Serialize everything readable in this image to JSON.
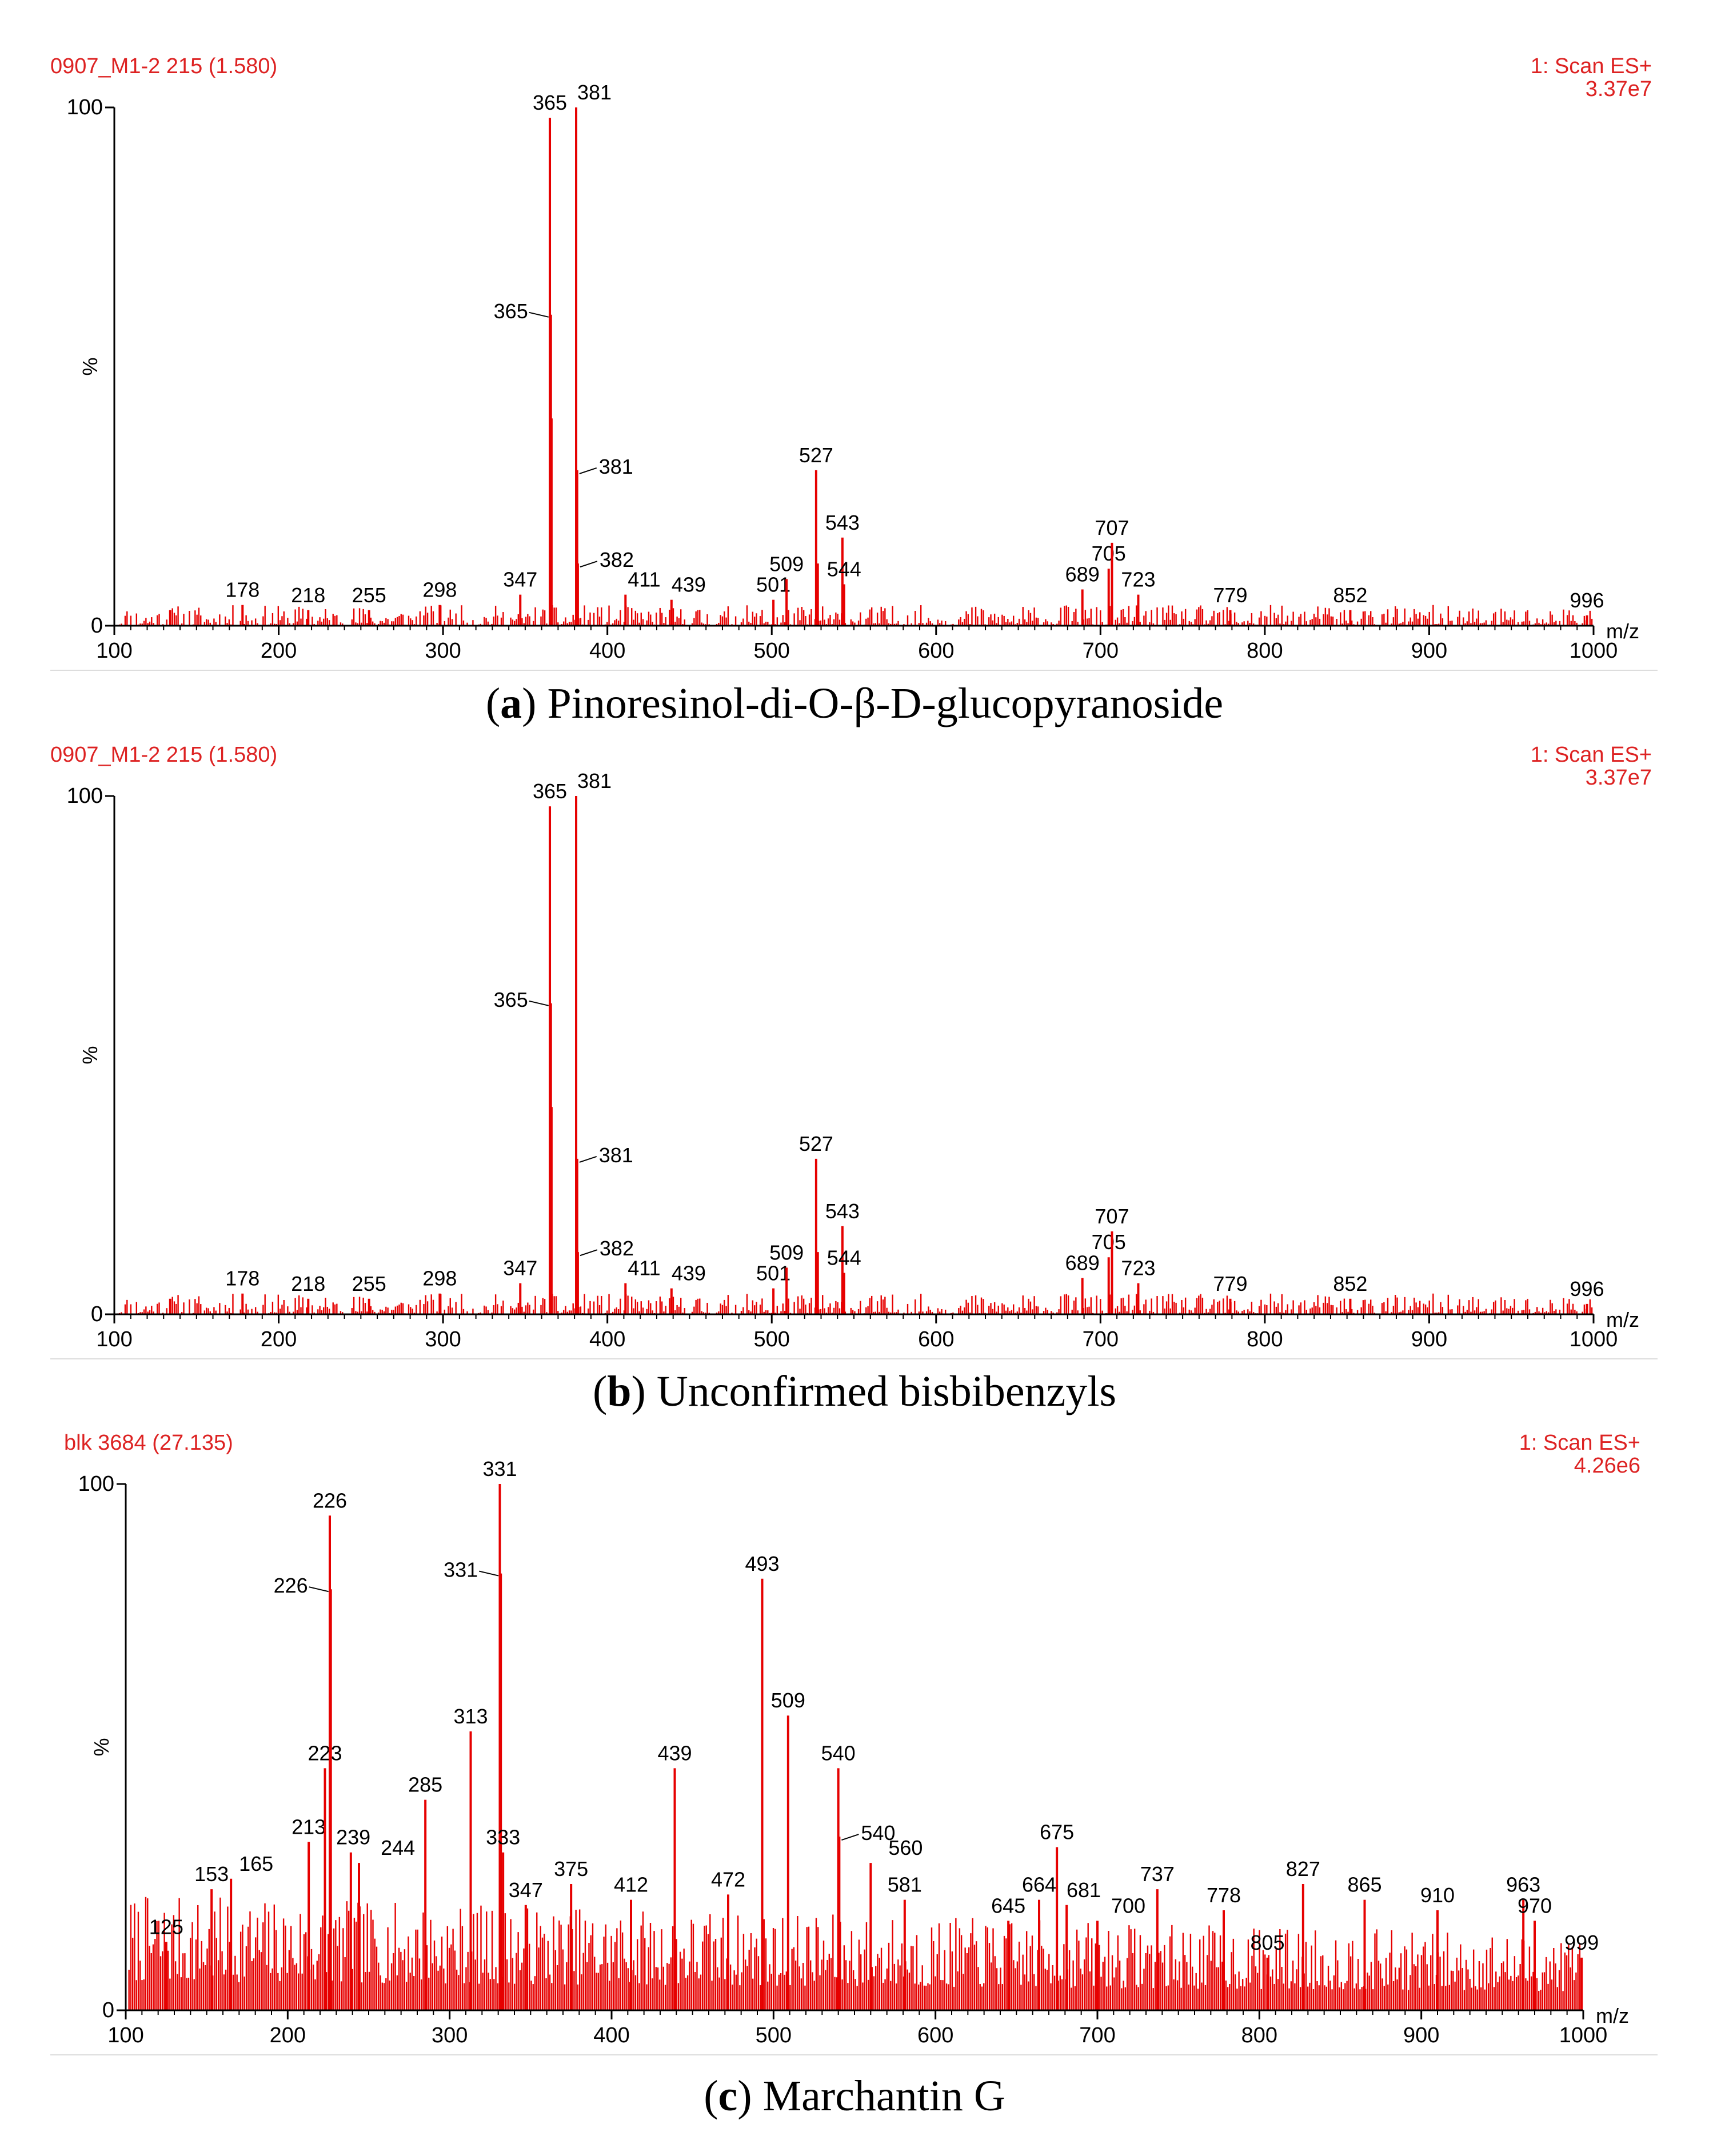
{
  "colors": {
    "peak": "#e60000",
    "header": "#dd2222",
    "axis": "#000000"
  },
  "chart_data": [
    {
      "type": "bar",
      "caption_letter": "a",
      "caption_text": "Pinoresinol-di-O-β-D-glucopyranoside",
      "header_left": "0907_M1-2 215 (1.580)",
      "header_right_1": "1: Scan ES+",
      "header_right_2": "3.37e7",
      "ylabel": "%",
      "xlabel": "m/z",
      "xlim": [
        100,
        1000
      ],
      "ylim": [
        0,
        100
      ],
      "xticks": [
        "100",
        "200",
        "300",
        "400",
        "500",
        "600",
        "700",
        "800",
        "900",
        "1000"
      ],
      "yticks": [
        "0",
        "100"
      ],
      "noise_level": 4,
      "noise_seed": 11,
      "peaks": [
        {
          "mz": 134,
          "rel": 3
        },
        {
          "mz": 178,
          "rel": 4,
          "label": "178"
        },
        {
          "mz": 218,
          "rel": 3,
          "label": "218"
        },
        {
          "mz": 255,
          "rel": 3,
          "label": "255"
        },
        {
          "mz": 298,
          "rel": 4,
          "label": "298"
        },
        {
          "mz": 347,
          "rel": 6,
          "label": "347"
        },
        {
          "mz": 365,
          "rel": 98,
          "label": "365"
        },
        {
          "mz": 366,
          "rel": 40
        },
        {
          "mz": 365.6,
          "rel": 60,
          "label": "365",
          "side": "left"
        },
        {
          "mz": 381,
          "rel": 100,
          "label": "381"
        },
        {
          "mz": 381.6,
          "rel": 30,
          "label": "381",
          "side": "right"
        },
        {
          "mz": 382,
          "rel": 12,
          "label": "382",
          "side": "right"
        },
        {
          "mz": 411,
          "rel": 6,
          "label": "411"
        },
        {
          "mz": 439,
          "rel": 5,
          "label": "439"
        },
        {
          "mz": 501,
          "rel": 5,
          "label": "501"
        },
        {
          "mz": 509,
          "rel": 9,
          "label": "509"
        },
        {
          "mz": 527,
          "rel": 30,
          "label": "527"
        },
        {
          "mz": 528,
          "rel": 12
        },
        {
          "mz": 543,
          "rel": 17,
          "label": "543"
        },
        {
          "mz": 544,
          "rel": 8,
          "label": "544"
        },
        {
          "mz": 689,
          "rel": 7,
          "label": "689"
        },
        {
          "mz": 705,
          "rel": 11,
          "label": "705"
        },
        {
          "mz": 707,
          "rel": 16,
          "label": "707"
        },
        {
          "mz": 723,
          "rel": 6,
          "label": "723"
        },
        {
          "mz": 779,
          "rel": 3,
          "label": "779"
        },
        {
          "mz": 852,
          "rel": 3,
          "label": "852"
        },
        {
          "mz": 996,
          "rel": 2,
          "label": "996"
        }
      ]
    },
    {
      "type": "bar",
      "caption_letter": "b",
      "caption_text": "Unconfirmed bisbibenzyls",
      "header_left": "0907_M1-2 215 (1.580)",
      "header_right_1": "1: Scan ES+",
      "header_right_2": "3.37e7",
      "ylabel": "%",
      "xlabel": "m/z",
      "xlim": [
        100,
        1000
      ],
      "ylim": [
        0,
        100
      ],
      "xticks": [
        "100",
        "200",
        "300",
        "400",
        "500",
        "600",
        "700",
        "800",
        "900",
        "1000"
      ],
      "yticks": [
        "0",
        "100"
      ],
      "noise_level": 4,
      "noise_seed": 11,
      "peaks": [
        {
          "mz": 134,
          "rel": 3
        },
        {
          "mz": 178,
          "rel": 4,
          "label": "178"
        },
        {
          "mz": 218,
          "rel": 3,
          "label": "218"
        },
        {
          "mz": 255,
          "rel": 3,
          "label": "255"
        },
        {
          "mz": 298,
          "rel": 4,
          "label": "298"
        },
        {
          "mz": 347,
          "rel": 6,
          "label": "347"
        },
        {
          "mz": 365,
          "rel": 98,
          "label": "365"
        },
        {
          "mz": 366,
          "rel": 40
        },
        {
          "mz": 365.6,
          "rel": 60,
          "label": "365",
          "side": "left"
        },
        {
          "mz": 381,
          "rel": 100,
          "label": "381"
        },
        {
          "mz": 381.6,
          "rel": 30,
          "label": "381",
          "side": "right"
        },
        {
          "mz": 382,
          "rel": 12,
          "label": "382",
          "side": "right"
        },
        {
          "mz": 411,
          "rel": 6,
          "label": "411"
        },
        {
          "mz": 439,
          "rel": 5,
          "label": "439"
        },
        {
          "mz": 501,
          "rel": 5,
          "label": "501"
        },
        {
          "mz": 509,
          "rel": 9,
          "label": "509"
        },
        {
          "mz": 527,
          "rel": 30,
          "label": "527"
        },
        {
          "mz": 528,
          "rel": 12
        },
        {
          "mz": 543,
          "rel": 17,
          "label": "543"
        },
        {
          "mz": 544,
          "rel": 8,
          "label": "544"
        },
        {
          "mz": 689,
          "rel": 7,
          "label": "689"
        },
        {
          "mz": 705,
          "rel": 11,
          "label": "705"
        },
        {
          "mz": 707,
          "rel": 16,
          "label": "707"
        },
        {
          "mz": 723,
          "rel": 6,
          "label": "723"
        },
        {
          "mz": 779,
          "rel": 3,
          "label": "779"
        },
        {
          "mz": 852,
          "rel": 3,
          "label": "852"
        },
        {
          "mz": 996,
          "rel": 2,
          "label": "996"
        }
      ]
    },
    {
      "type": "bar",
      "caption_letter": "c",
      "caption_text": "Marchantin G",
      "header_left": "blk 3684 (27.135)",
      "header_right_1": "1: Scan ES+",
      "header_right_2": "4.26e6",
      "ylabel": "%",
      "xlabel": "m/z",
      "xlim": [
        100,
        1000
      ],
      "ylim": [
        0,
        100
      ],
      "xticks": [
        "100",
        "200",
        "300",
        "400",
        "500",
        "600",
        "700",
        "800",
        "900",
        "1000"
      ],
      "yticks": [
        "0",
        "100"
      ],
      "noise_level": 22,
      "noise_seed": 7,
      "peaks": [
        {
          "mz": 125,
          "rel": 13,
          "label": "125"
        },
        {
          "mz": 153,
          "rel": 23,
          "label": "153"
        },
        {
          "mz": 165,
          "rel": 25,
          "label": "165"
        },
        {
          "mz": 213,
          "rel": 32,
          "label": "213"
        },
        {
          "mz": 223,
          "rel": 46,
          "label": "223"
        },
        {
          "mz": 226,
          "rel": 94,
          "label": "226"
        },
        {
          "mz": 226.6,
          "rel": 80,
          "label": "226",
          "side": "left"
        },
        {
          "mz": 239,
          "rel": 30,
          "label": "239"
        },
        {
          "mz": 244,
          "rel": 28,
          "label": "244"
        },
        {
          "mz": 285,
          "rel": 40,
          "label": "285"
        },
        {
          "mz": 313,
          "rel": 53,
          "label": "313"
        },
        {
          "mz": 331,
          "rel": 100,
          "label": "331"
        },
        {
          "mz": 331.6,
          "rel": 83,
          "label": "331",
          "side": "left"
        },
        {
          "mz": 333,
          "rel": 30,
          "label": "333"
        },
        {
          "mz": 347,
          "rel": 20,
          "label": "347"
        },
        {
          "mz": 375,
          "rel": 24,
          "label": "375"
        },
        {
          "mz": 412,
          "rel": 21,
          "label": "412"
        },
        {
          "mz": 439,
          "rel": 46,
          "label": "439"
        },
        {
          "mz": 472,
          "rel": 22,
          "label": "472"
        },
        {
          "mz": 493,
          "rel": 82,
          "label": "493"
        },
        {
          "mz": 509,
          "rel": 56,
          "label": "509"
        },
        {
          "mz": 540,
          "rel": 46,
          "label": "540"
        },
        {
          "mz": 540.6,
          "rel": 33,
          "label": "540",
          "side": "right"
        },
        {
          "mz": 560,
          "rel": 28,
          "label": "560"
        },
        {
          "mz": 581,
          "rel": 21,
          "label": "581"
        },
        {
          "mz": 645,
          "rel": 17,
          "label": "645"
        },
        {
          "mz": 664,
          "rel": 21,
          "label": "664"
        },
        {
          "mz": 675,
          "rel": 31,
          "label": "675"
        },
        {
          "mz": 681,
          "rel": 20,
          "label": "681"
        },
        {
          "mz": 700,
          "rel": 17,
          "label": "700"
        },
        {
          "mz": 737,
          "rel": 23,
          "label": "737"
        },
        {
          "mz": 778,
          "rel": 19,
          "label": "778"
        },
        {
          "mz": 805,
          "rel": 10,
          "label": "805"
        },
        {
          "mz": 827,
          "rel": 24,
          "label": "827"
        },
        {
          "mz": 865,
          "rel": 21,
          "label": "865"
        },
        {
          "mz": 910,
          "rel": 19,
          "label": "910"
        },
        {
          "mz": 963,
          "rel": 21,
          "label": "963"
        },
        {
          "mz": 970,
          "rel": 17,
          "label": "970"
        },
        {
          "mz": 999,
          "rel": 10,
          "label": "999"
        }
      ]
    }
  ]
}
